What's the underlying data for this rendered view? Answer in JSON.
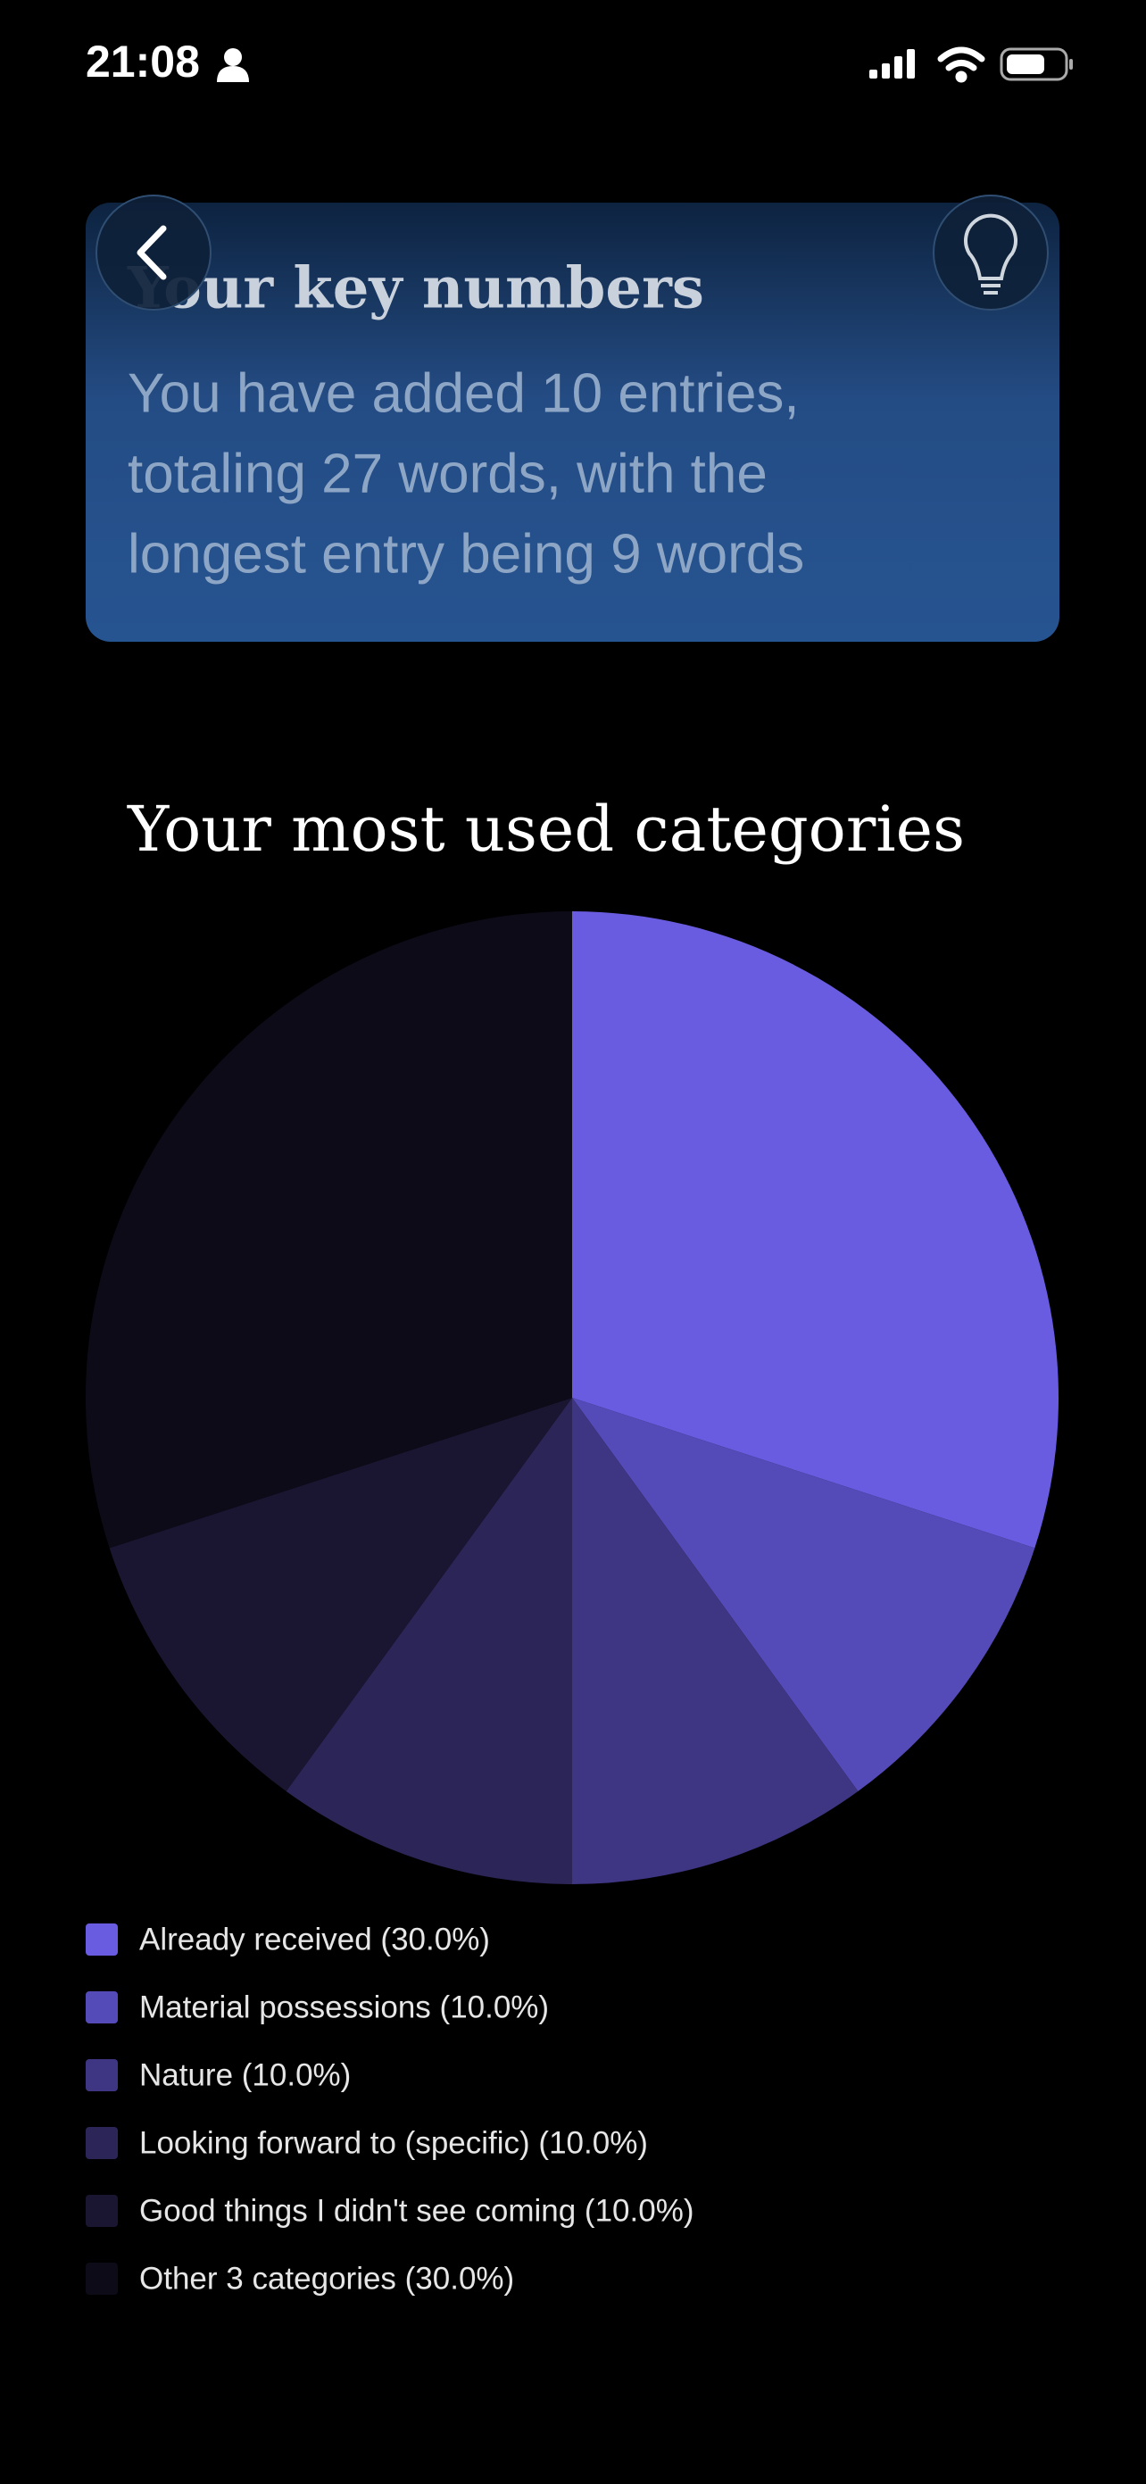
{
  "status_bar": {
    "time": "21:08"
  },
  "card": {
    "title": "Your key numbers",
    "lines": [
      "You have added 10 entries,",
      "totaling 27 words, with the",
      "longest entry being 9 words"
    ]
  },
  "chart_data": {
    "type": "pie",
    "title": "Your most used categories",
    "categories": [
      "Already received (30.0%)",
      "Material possessions (10.0%)",
      "Nature (10.0%)",
      "Looking forward to (specific) (10.0%)",
      "Good things I didn't see coming (10.0%)",
      "Other 3 categories (30.0%)"
    ],
    "values": [
      30,
      10,
      10,
      10,
      10,
      30
    ],
    "colors": [
      "#6a5ce0",
      "#554bb8",
      "#3e3682",
      "#2c2558",
      "#1a1631",
      "#0d0b18"
    ]
  }
}
